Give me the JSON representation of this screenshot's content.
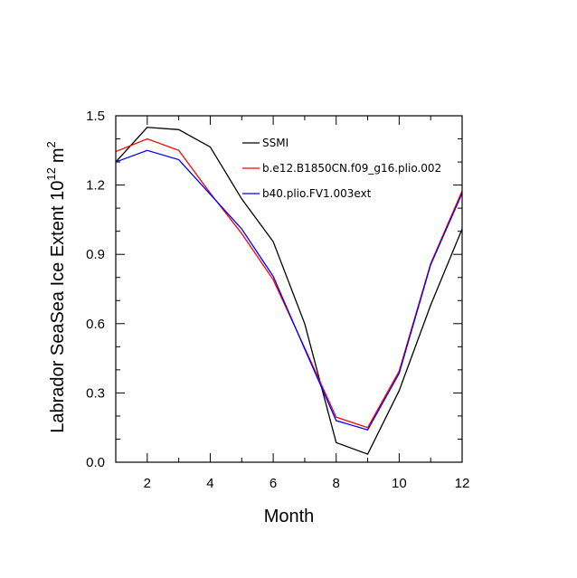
{
  "chart_data": {
    "type": "line",
    "title": "",
    "xlabel": "Month",
    "ylabel": "Labrador SeaSea Ice Extent 10",
    "ylabel_exponent": "12",
    "ylabel_unit": "m",
    "ylabel_unit_exponent": "2",
    "xlim": [
      1,
      12
    ],
    "ylim": [
      0,
      1.5
    ],
    "x_ticks": [
      2,
      4,
      6,
      8,
      10,
      12
    ],
    "y_ticks": [
      "0.0",
      "0.3",
      "0.6",
      "0.9",
      "1.2",
      "1.5"
    ],
    "grid": false,
    "legend_position": "top-right",
    "x": [
      1,
      2,
      3,
      4,
      5,
      6,
      7,
      8,
      9,
      10,
      11,
      12
    ],
    "series": [
      {
        "name": "SSMI",
        "color": "#000000",
        "values": [
          1.3,
          1.45,
          1.44,
          1.365,
          1.14,
          0.955,
          0.6,
          0.085,
          0.035,
          0.31,
          0.68,
          1.01
        ]
      },
      {
        "name": "b.e12.B1850CN.f09_g16.plio.002",
        "color": "#ff0000",
        "values": [
          1.345,
          1.4,
          1.35,
          1.165,
          0.99,
          0.79,
          0.495,
          0.195,
          0.15,
          0.395,
          0.86,
          1.175
        ]
      },
      {
        "name": "b40.plio.FV1.003ext",
        "color": "#0000ff",
        "values": [
          1.3,
          1.35,
          1.31,
          1.16,
          1.01,
          0.805,
          0.49,
          0.18,
          0.14,
          0.385,
          0.855,
          1.165
        ]
      }
    ]
  }
}
